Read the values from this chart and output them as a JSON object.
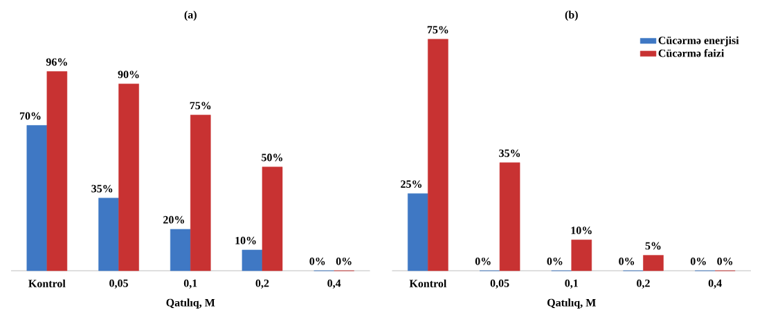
{
  "chart_data": [
    {
      "type": "bar",
      "title": "(a)",
      "xlabel": "Qatılıq, M",
      "categories": [
        "Kontrol",
        "0,05",
        "0,1",
        "0,2",
        "0,4"
      ],
      "legend": false,
      "series": [
        {
          "color": "#3f78c4",
          "values": [
            70,
            35,
            20,
            10,
            0
          ],
          "value_labels": [
            "70%",
            "35%",
            "20%",
            "10%",
            "0%"
          ]
        },
        {
          "color": "#c83232",
          "values": [
            96,
            90,
            75,
            50,
            0
          ],
          "value_labels": [
            "96%",
            "90%",
            "75%",
            "50%",
            "0%"
          ]
        }
      ]
    },
    {
      "type": "bar",
      "title": "(b)",
      "xlabel": "Qatılıq, M",
      "categories": [
        "Kontrol",
        "0,05",
        "0,1",
        "0,2",
        "0,4"
      ],
      "legend": "top right",
      "series": [
        {
          "name": "Cücərmə enerjisi",
          "color": "#3f78c4",
          "values": [
            25,
            0,
            0,
            0,
            0
          ],
          "value_labels": [
            "25%",
            "0%",
            "0%",
            "0%",
            "0%"
          ]
        },
        {
          "name": "Cücərmə faizi",
          "color": "#c83232",
          "values": [
            75,
            35,
            10,
            5,
            0
          ],
          "value_labels": [
            "75%",
            "35%",
            "10%",
            "5%",
            "0%"
          ]
        }
      ]
    }
  ]
}
